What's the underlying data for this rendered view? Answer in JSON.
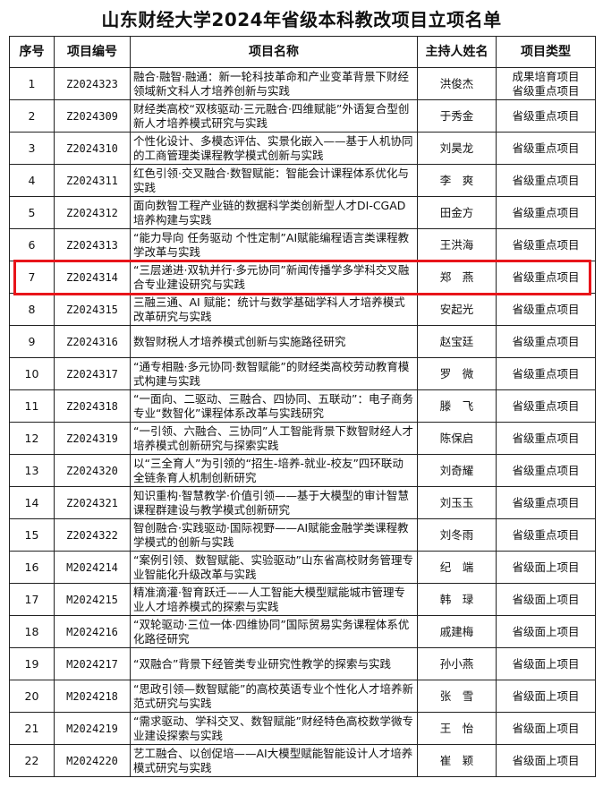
{
  "title": "山东财经大学2024年省级本科教改项目立项名单",
  "columns": [
    "序号",
    "项目编号",
    "项目名称",
    "主持人姓名",
    "项目类型"
  ],
  "highlight_color": "#e8141a",
  "highlighted_row": 7,
  "rows": [
    {
      "no": "1",
      "code": "Z2024323",
      "name": "融合·融智·融通：新一轮科技革命和产业变革背景下财经领域新文科人才培养创新与实践",
      "leader": "洪俊杰",
      "type": "成果培育项目 省级重点项目"
    },
    {
      "no": "2",
      "code": "Z2024309",
      "name": "财经类高校“双核驱动·三元融合·四维赋能”外语复合型创新人才培养模式研究与实践",
      "leader": "于秀金",
      "type": "省级重点项目"
    },
    {
      "no": "3",
      "code": "Z2024310",
      "name": "个性化设计、多模态评估、实景化嵌入——基于人机协同的工商管理类课程教学模式创新与实践",
      "leader": "刘昊龙",
      "type": "省级重点项目"
    },
    {
      "no": "4",
      "code": "Z2024311",
      "name": "红色引领·交叉融合·数智赋能：智能会计课程体系优化与实践",
      "leader": "李　爽",
      "type": "省级重点项目"
    },
    {
      "no": "5",
      "code": "Z2024312",
      "name": "面向数智工程产业链的数据科学类创新型人才DI-CGAD培养构建与实践",
      "leader": "田金方",
      "type": "省级重点项目"
    },
    {
      "no": "6",
      "code": "Z2024313",
      "name": "“能力导向 任务驱动 个性定制”AI赋能编程语言类课程教学改革与实践",
      "leader": "王洪海",
      "type": "省级重点项目"
    },
    {
      "no": "7",
      "code": "Z2024314",
      "name": "“三层递进·双轨并行·多元协同”新闻传播学多学科交叉融合专业建设研究与实践",
      "leader": "郑　燕",
      "type": "省级重点项目"
    },
    {
      "no": "8",
      "code": "Z2024315",
      "name": "三融三通、AI 赋能：统计与数学基础学科人才培养模式改革研究与实践",
      "leader": "安起光",
      "type": "省级重点项目"
    },
    {
      "no": "9",
      "code": "Z2024316",
      "name": "数智财税人才培养模式创新与实施路径研究",
      "leader": "赵宝廷",
      "type": "省级重点项目"
    },
    {
      "no": "10",
      "code": "Z2024317",
      "name": "“通专相融·多元协同·数智赋能”的财经类高校劳动教育模式构建与实践",
      "leader": "罗　微",
      "type": "省级重点项目"
    },
    {
      "no": "11",
      "code": "Z2024318",
      "name": "“一面向、二驱动、三融合、四协同、五联动”：电子商务专业“数智化”课程体系改革与实践研究",
      "leader": "滕　飞",
      "type": "省级重点项目"
    },
    {
      "no": "12",
      "code": "Z2024319",
      "name": "“一引领、六融合、三协同”人工智能背景下数智财经人才培养模式创新研究与探索实践",
      "leader": "陈保启",
      "type": "省级重点项目"
    },
    {
      "no": "13",
      "code": "Z2024320",
      "name": "以“三全育人”为引领的“招生-培养-就业-校友”四环联动全链条育人机制创新研究",
      "leader": "刘奇耀",
      "type": "省级重点项目"
    },
    {
      "no": "14",
      "code": "Z2024321",
      "name": "知识重构·智慧教学·价值引领——基于大模型的审计智慧课程群建设与教学模式创新研究",
      "leader": "刘玉玉",
      "type": "省级重点项目"
    },
    {
      "no": "15",
      "code": "Z2024322",
      "name": "智创融合·实践驱动·国际视野——AI赋能金融学类课程教学模式的创新与实践",
      "leader": "刘冬雨",
      "type": "省级重点项目"
    },
    {
      "no": "16",
      "code": "M2024214",
      "name": "“案例引领、数智赋能、实验驱动”山东省高校财务管理专业智能化升级改革与实践",
      "leader": "纪　端",
      "type": "省级面上项目"
    },
    {
      "no": "17",
      "code": "M2024215",
      "name": "精准滴灌·智育跃迁——人工智能大模型赋能城市管理专业人才培养模式的探索与实践",
      "leader": "韩　琭",
      "type": "省级面上项目"
    },
    {
      "no": "18",
      "code": "M2024216",
      "name": "“双轮驱动·三位一体·四维协同”国际贸易实务课程体系优化路径研究",
      "leader": "戚建梅",
      "type": "省级面上项目"
    },
    {
      "no": "19",
      "code": "M2024217",
      "name": "“双融合”背景下经管类专业研究性教学的探索与实践",
      "leader": "孙小燕",
      "type": "省级面上项目"
    },
    {
      "no": "20",
      "code": "M2024218",
      "name": "“思政引领—数智赋能”的高校英语专业个性化人才培养新范式研究与实践",
      "leader": "张　雪",
      "type": "省级面上项目"
    },
    {
      "no": "21",
      "code": "M2024219",
      "name": "“需求驱动、学科交叉、数智赋能”财经特色高校数学微专业建设探索与实践",
      "leader": "王　怡",
      "type": "省级面上项目"
    },
    {
      "no": "22",
      "code": "M2024220",
      "name": "艺工融合、以创促培——AI大模型赋能智能设计人才培养模式研究与实践",
      "leader": "崔　颖",
      "type": "省级面上项目"
    }
  ]
}
